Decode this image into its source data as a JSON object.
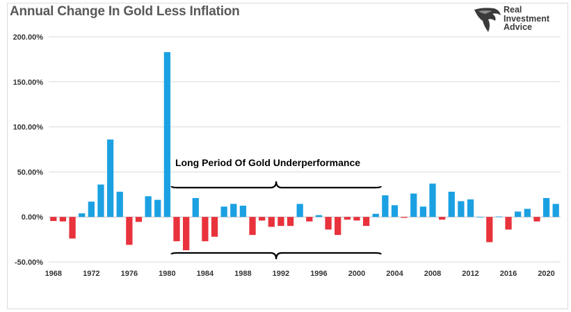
{
  "chart_data": {
    "type": "bar",
    "title": "Annual Change In Gold Less Inflation",
    "xlabel": "",
    "ylabel": "",
    "ylim": [
      -50,
      200
    ],
    "yticks": [
      "200.00%",
      "150.00%",
      "100.00%",
      "50.00%",
      "0.00%",
      "-50.00%"
    ],
    "ytick_values": [
      200,
      150,
      100,
      50,
      0,
      -50
    ],
    "xticks": [
      "1968",
      "1972",
      "1976",
      "1980",
      "1984",
      "1988",
      "1992",
      "1996",
      "2000",
      "2004",
      "2008",
      "2012",
      "2016",
      "2020"
    ],
    "x": [
      1968,
      1969,
      1970,
      1971,
      1972,
      1973,
      1974,
      1975,
      1976,
      1977,
      1978,
      1979,
      1980,
      1981,
      1982,
      1983,
      1984,
      1985,
      1986,
      1987,
      1988,
      1989,
      1990,
      1991,
      1992,
      1993,
      1994,
      1995,
      1996,
      1997,
      1998,
      1999,
      2000,
      2001,
      2002,
      2003,
      2004,
      2005,
      2006,
      2007,
      2008,
      2009,
      2010,
      2011,
      2012,
      2013,
      2014,
      2015,
      2016,
      2017,
      2018,
      2019,
      2020,
      2021
    ],
    "values": [
      -4.5,
      -5,
      -24,
      4,
      17,
      36,
      86,
      28,
      -31,
      -5.5,
      23,
      19,
      183,
      -27,
      -37,
      21,
      -27,
      -22,
      11.5,
      14.5,
      12.5,
      -20,
      -4,
      -11,
      -10,
      -10,
      14.5,
      -5,
      2,
      -14,
      -20,
      -3,
      -4,
      -10,
      3.5,
      24,
      13,
      -1,
      26,
      11.5,
      37,
      -3,
      28,
      17.5,
      19.5,
      0,
      -28,
      0.5,
      -14,
      6,
      9,
      -5,
      21,
      14.5
    ],
    "colors": {
      "positive": "#1ba1e2",
      "negative": "#e8323c",
      "grid": "#d9d9d9"
    },
    "grid": true,
    "annotation": "Long Period Of Gold Underperformance"
  },
  "logo": {
    "line1": "Real",
    "line2": "Investment",
    "line3": "Advice",
    "icon": "eagle-icon"
  }
}
